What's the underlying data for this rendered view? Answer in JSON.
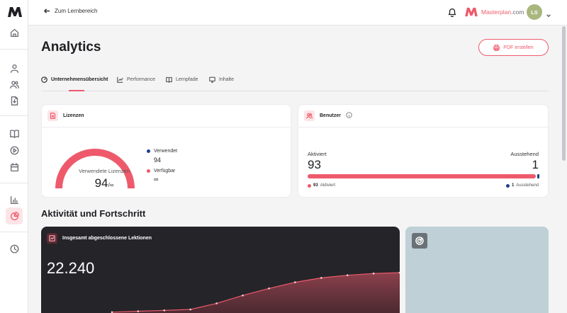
{
  "topbar": {
    "back_label": "Zum Lernbereich",
    "brand_name": "Masterplan",
    "brand_suffix": ".com",
    "avatar_initials": "LS"
  },
  "page": {
    "title": "Analytics",
    "pdf_button": "PDF erstellen"
  },
  "tabs": [
    {
      "label": "Unternehmensübersicht",
      "icon": "gauge-icon",
      "active": true
    },
    {
      "label": "Performance",
      "icon": "chart-line-icon",
      "active": false
    },
    {
      "label": "Lernpfade",
      "icon": "book-icon",
      "active": false
    },
    {
      "label": "Inhalte",
      "icon": "presentation-icon",
      "active": false
    }
  ],
  "licenses": {
    "title": "Lizenzen",
    "gauge_label": "Verwendete Lizenzen",
    "used_value": "94",
    "total_symbol": "/∞",
    "legend": [
      {
        "label": "Verwendet",
        "value": "94",
        "color": "#1e3f8a"
      },
      {
        "label": "Verfügbar",
        "value": "∞",
        "color": "#ee5a6b"
      }
    ]
  },
  "users": {
    "title": "Benutzer",
    "activated_label": "Aktiviert",
    "activated_value": "93",
    "pending_label": "Ausstehend",
    "pending_value": "1",
    "legend_activated_num": "93",
    "legend_activated_text": "Aktiviert",
    "legend_pending_num": "1",
    "legend_pending_text": "Ausstehend",
    "activated_fraction": 0.9894
  },
  "section": {
    "title": "Aktivität und Fortschritt"
  },
  "lessons_card": {
    "title": "Insgesamt abgeschlossene Lektionen",
    "value": "22.240"
  },
  "chart_data": {
    "type": "area",
    "title": "Insgesamt abgeschlossene Lektionen",
    "x": [
      0,
      1,
      2,
      3,
      4,
      5,
      6,
      7,
      8,
      9,
      10,
      11
    ],
    "values": [
      0.02,
      0.04,
      0.06,
      0.08,
      0.22,
      0.4,
      0.56,
      0.7,
      0.8,
      0.86,
      0.9,
      0.92
    ],
    "color": "#ee5a6b"
  },
  "colors": {
    "accent": "#ee5a6b",
    "navy": "#1e3f8a"
  }
}
